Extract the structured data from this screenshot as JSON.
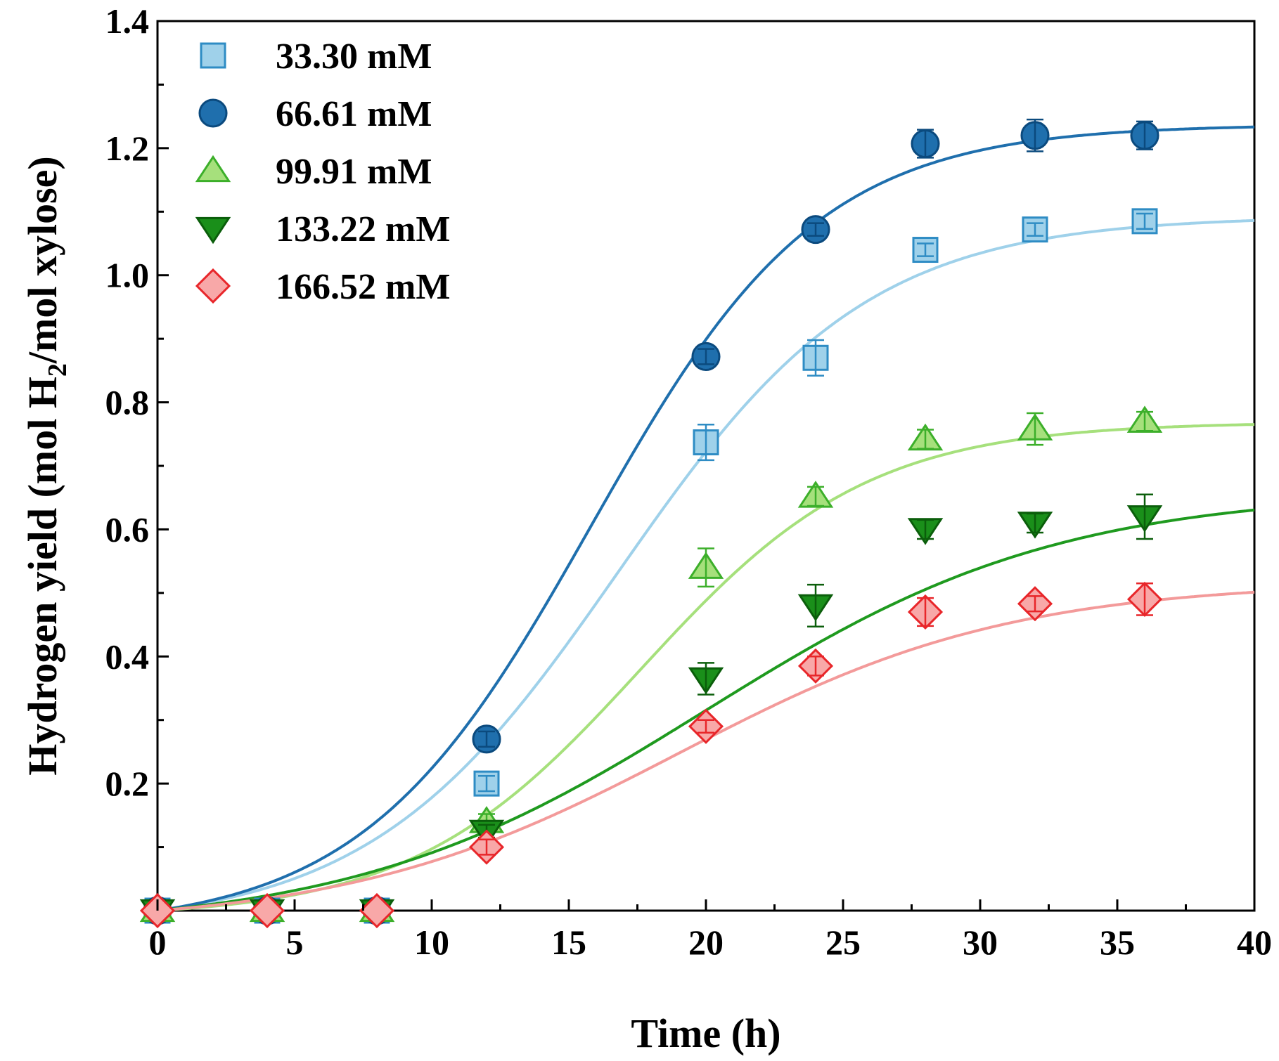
{
  "chart_data": {
    "type": "scatter",
    "title": "",
    "xlabel": "Time (h)",
    "ylabel_parts": [
      "Hydrogen yield (mol H",
      "2",
      "/mol xylose)"
    ],
    "xlim": [
      0,
      40
    ],
    "ylim": [
      0,
      1.4
    ],
    "xticks": [
      0,
      5,
      10,
      15,
      20,
      25,
      30,
      35,
      40
    ],
    "xtick_labels": [
      "0",
      "5",
      "10",
      "15",
      "20",
      "25",
      "30",
      "35",
      "40"
    ],
    "yticks": [
      0.2,
      0.4,
      0.6,
      0.8,
      1.0,
      1.2,
      1.4
    ],
    "ytick_labels": [
      "0.2",
      "0.4",
      "0.6",
      "0.8",
      "1.0",
      "1.2",
      "1.4"
    ],
    "x": [
      0,
      4,
      8,
      12,
      20,
      24,
      28,
      32,
      36
    ],
    "legend_position": "top-left",
    "series": [
      {
        "name": "33.30 mM",
        "marker": "square",
        "fill": "#9fd1ea",
        "stroke": "#2e8cc4",
        "line_color": "#9fd1ea",
        "values": [
          0,
          0,
          0,
          0.2,
          0.737,
          0.87,
          1.04,
          1.072,
          1.085
        ],
        "errors": [
          0,
          0,
          0,
          0.012,
          0.028,
          0.028,
          0.01,
          0.01,
          0.012
        ],
        "fit": {
          "A": 1.12,
          "k": 0.22,
          "x0": 16.8
        }
      },
      {
        "name": "66.61 mM",
        "marker": "circle",
        "fill": "#1f6fad",
        "stroke": "#0b4a7e",
        "line_color": "#1f6fad",
        "values": [
          0,
          0,
          0,
          0.27,
          0.872,
          1.072,
          1.207,
          1.22,
          1.22
        ],
        "errors": [
          0,
          0,
          0,
          0.012,
          0.012,
          0.01,
          0.022,
          0.025,
          0.022
        ],
        "fit": {
          "A": 1.265,
          "k": 0.24,
          "x0": 15.8
        }
      },
      {
        "name": "99.91 mM",
        "marker": "triangle-up",
        "fill": "#a6e07c",
        "stroke": "#3caf2a",
        "line_color": "#a6e07c",
        "values": [
          0,
          0,
          0,
          0.14,
          0.54,
          0.652,
          0.742,
          0.758,
          0.77
        ],
        "errors": [
          0,
          0,
          0,
          0.012,
          0.03,
          0.015,
          0.015,
          0.025,
          0.015
        ],
        "fit": {
          "A": 0.78,
          "k": 0.24,
          "x0": 17.6
        }
      },
      {
        "name": "133.22 mM",
        "marker": "triangle-down",
        "fill": "#1a8f1a",
        "stroke": "#0b5e0b",
        "line_color": "#1f9a1f",
        "values": [
          0,
          0,
          0,
          0.125,
          0.365,
          0.48,
          0.6,
          0.61,
          0.62
        ],
        "errors": [
          0,
          0,
          0,
          0.01,
          0.025,
          0.033,
          0.015,
          0.015,
          0.035
        ],
        "fit": {
          "A": 0.69,
          "k": 0.155,
          "x0": 20.0
        }
      },
      {
        "name": "166.52 mM",
        "marker": "diamond",
        "fill": "#f8a8a8",
        "stroke": "#e8262a",
        "line_color": "#f39a9a",
        "values": [
          0,
          0,
          0,
          0.1,
          0.29,
          0.385,
          0.47,
          0.483,
          0.49
        ],
        "errors": [
          0,
          0,
          0,
          0.012,
          0.01,
          0.015,
          0.022,
          0.012,
          0.025
        ],
        "fit": {
          "A": 0.54,
          "k": 0.165,
          "x0": 19.0
        }
      }
    ]
  }
}
